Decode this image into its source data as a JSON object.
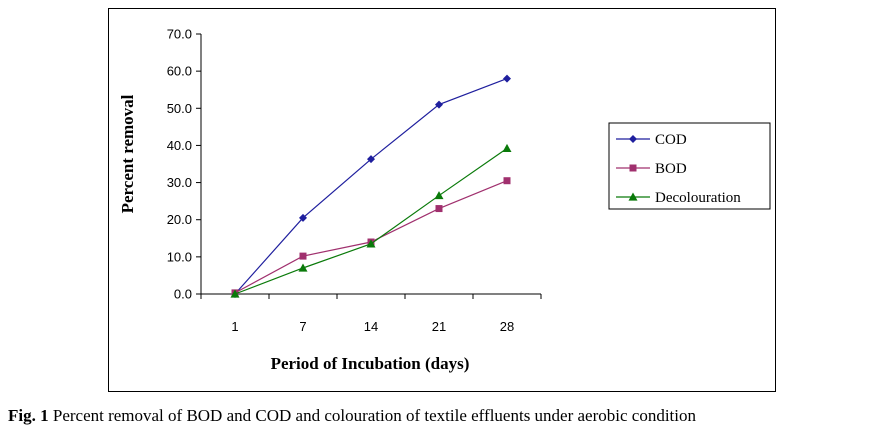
{
  "chart_data": {
    "type": "line",
    "categories": [
      "1",
      "7",
      "14",
      "21",
      "28"
    ],
    "series": [
      {
        "name": "COD",
        "values": [
          0.0,
          20.5,
          36.3,
          51.0,
          58.0
        ],
        "color": "#1f1f9e",
        "marker": "diamond"
      },
      {
        "name": "BOD",
        "values": [
          0.3,
          10.2,
          14.0,
          23.0,
          30.5
        ],
        "color": "#a0306e",
        "marker": "square"
      },
      {
        "name": "Decolouration",
        "values": [
          0.0,
          7.0,
          13.5,
          26.5,
          39.2
        ],
        "color": "#0a7a0a",
        "marker": "triangle"
      }
    ],
    "xlabel": "Period of Incubation (days)",
    "ylabel": "Percent removal",
    "ylim": [
      0,
      70
    ],
    "yticks": [
      "0.0",
      "10.0",
      "20.0",
      "30.0",
      "40.0",
      "50.0",
      "60.0",
      "70.0"
    ],
    "grid": false,
    "legend_position": "right"
  },
  "caption": {
    "label": "Fig. 1",
    "text": " Percent removal of BOD and COD and colouration of textile effluents under aerobic condition"
  }
}
